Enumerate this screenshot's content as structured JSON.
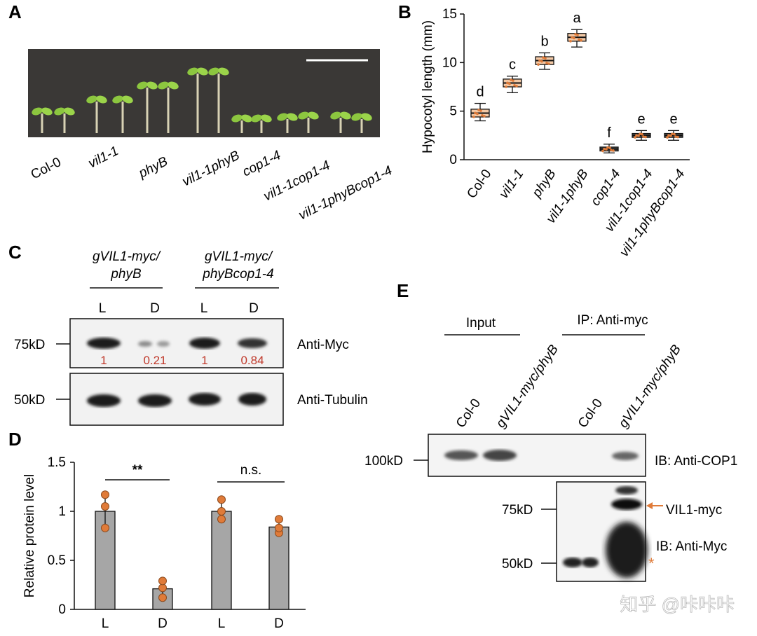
{
  "panels": {
    "a": "A",
    "b": "B",
    "c": "C",
    "d": "D",
    "e": "E"
  },
  "panel_a": {
    "genotypes": [
      "Col-0",
      "vil1-1",
      "phyB",
      "vil1-1phyB",
      "cop1-4",
      "vil1-1cop1-4",
      "vil1-1phyBcop1-4"
    ]
  },
  "panel_c": {
    "group1_line1": "gVIL1-myc/",
    "group1_line2": "phyB",
    "group2_line1": "gVIL1-myc/",
    "group2_line2": "phyBcop1-4",
    "lanes": [
      "L",
      "D",
      "L",
      "D"
    ],
    "quant": [
      "1",
      "0.21",
      "1",
      "0.84"
    ],
    "marker_top": "75kD",
    "marker_bottom": "50kD",
    "antibody_top": "Anti-Myc",
    "antibody_bottom": "Anti-Tubulin"
  },
  "panel_e": {
    "input_label": "Input",
    "ip_label": "IP: Anti-myc",
    "lanes": [
      "Col-0",
      "gVIL1-myc/phyB",
      "Col-0",
      "gVIL1-myc/phyB"
    ],
    "marker_100": "100kD",
    "marker_75": "75kD",
    "marker_50": "50kD",
    "ib_cop1": "IB: Anti-COP1",
    "ib_myc": "IB: Anti-Myc",
    "vil1_label": "VIL1-myc",
    "asterisk": "*"
  },
  "watermark": "知乎 @咔咔咔",
  "colors": {
    "accent_orange": "#e07b39",
    "quant_red": "#c0392b",
    "bar_grey": "#a6a6a6"
  },
  "chart_data": [
    {
      "id": "B",
      "type": "box",
      "title": "",
      "xlabel": "",
      "ylabel": "Hypocotyl length (mm)",
      "ylim": [
        0,
        15
      ],
      "yticks": [
        0,
        5,
        10,
        15
      ],
      "categories": [
        "Col-0",
        "vil1-1",
        "phyB",
        "vil1-1phyB",
        "cop1-4",
        "vil1-1cop1-4",
        "vil1-1phyBcop1-4"
      ],
      "median": [
        4.8,
        7.9,
        10.2,
        12.6,
        1.1,
        2.5,
        2.5
      ],
      "q1": [
        4.4,
        7.5,
        9.8,
        12.2,
        0.9,
        2.3,
        2.3
      ],
      "q3": [
        5.2,
        8.3,
        10.6,
        13.0,
        1.3,
        2.7,
        2.7
      ],
      "min": [
        4.0,
        6.9,
        9.3,
        11.6,
        0.7,
        2.0,
        2.0
      ],
      "max": [
        5.8,
        8.6,
        11.0,
        13.4,
        1.6,
        3.0,
        3.0
      ],
      "letters": [
        "d",
        "c",
        "b",
        "a",
        "f",
        "e",
        "e"
      ]
    },
    {
      "id": "D",
      "type": "bar",
      "title": "",
      "xlabel": "",
      "ylabel": "Relative protein level",
      "ylim": [
        0,
        1.5
      ],
      "yticks": [
        0,
        0.5,
        1,
        1.5
      ],
      "ytick_labels": [
        "0",
        "0.5",
        "1",
        "1.5"
      ],
      "categories": [
        "L",
        "D",
        "L",
        "D"
      ],
      "values": [
        1.0,
        0.21,
        1.0,
        0.84
      ],
      "errors": [
        0.15,
        0.09,
        0.12,
        0.07
      ],
      "points": [
        [
          0.83,
          1.05,
          1.17
        ],
        [
          0.12,
          0.22,
          0.29
        ],
        [
          0.92,
          1.0,
          1.12
        ],
        [
          0.78,
          0.83,
          0.92
        ]
      ],
      "significance": [
        "**",
        "n.s."
      ]
    }
  ]
}
